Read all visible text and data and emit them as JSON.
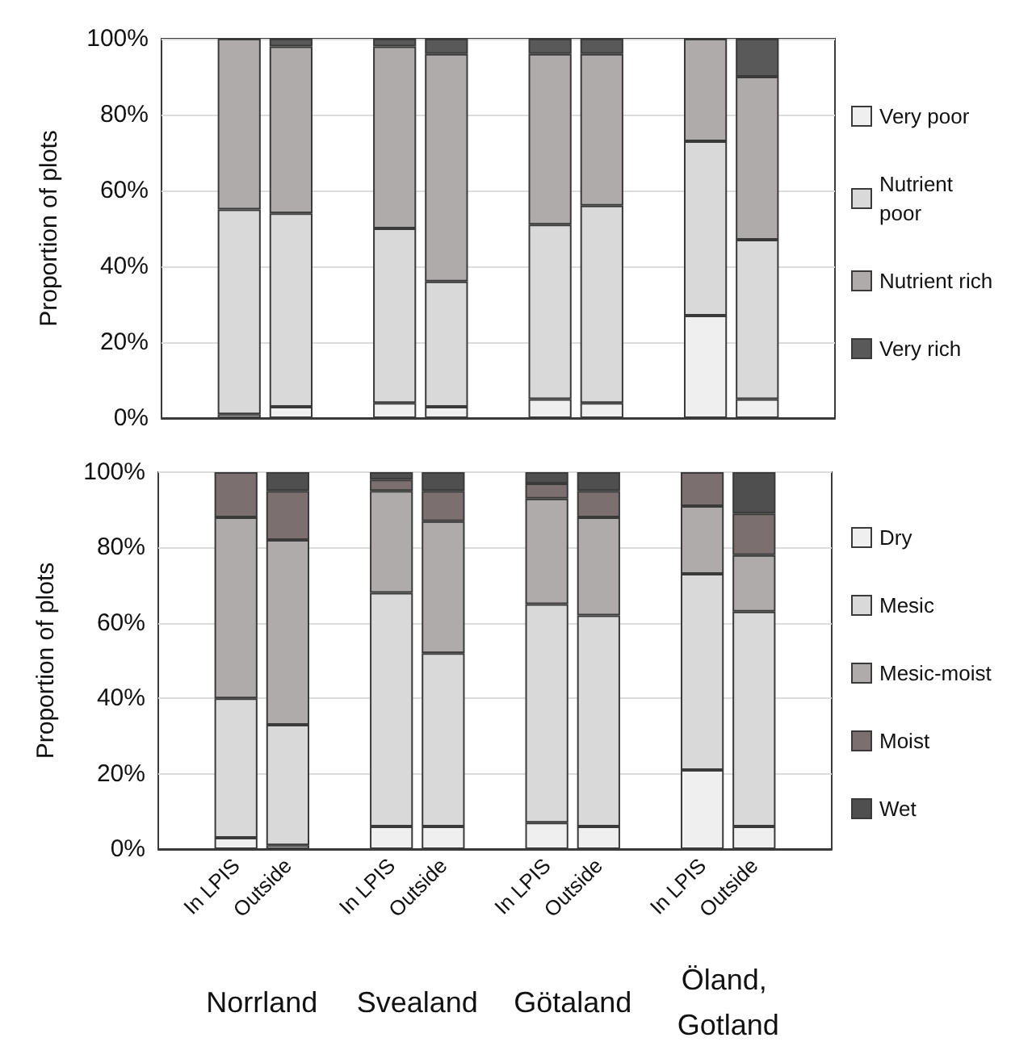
{
  "chart_data": [
    {
      "type": "bar",
      "stacked": true,
      "ylabel": "Proportion of plots",
      "categories": [
        null,
        "In LPIS",
        "Outside",
        null,
        "In LPIS",
        "Outside",
        null,
        "In LPIS",
        "Outside",
        null,
        "In LPIS",
        "Outside",
        null
      ],
      "series": [
        {
          "name": "Very poor",
          "color": "#efefef",
          "values": [
            null,
            1,
            3,
            null,
            4,
            3,
            null,
            5,
            4,
            null,
            27,
            5,
            null
          ]
        },
        {
          "name": "Nutrient poor",
          "color": "#d9d9d9",
          "values": [
            null,
            54,
            51,
            null,
            46,
            33,
            null,
            46,
            52,
            null,
            46,
            42,
            null
          ]
        },
        {
          "name": "Nutrient rich",
          "color": "#afabab",
          "values": [
            null,
            45,
            44,
            null,
            48,
            60,
            null,
            45,
            40,
            null,
            27,
            43,
            null
          ]
        },
        {
          "name": "Very rich",
          "color": "#595959",
          "values": [
            null,
            0,
            2,
            null,
            2,
            4,
            null,
            4,
            4,
            null,
            0,
            10,
            null
          ]
        }
      ],
      "ylim": [
        0,
        100
      ],
      "yticks": [
        {
          "value": 0,
          "label": "0%"
        },
        {
          "value": 20,
          "label": "20%"
        },
        {
          "value": 40,
          "label": "40%"
        },
        {
          "value": 60,
          "label": "60%"
        },
        {
          "value": 80,
          "label": "80%"
        },
        {
          "value": 100,
          "label": "100%"
        }
      ],
      "grid": "y",
      "legend": "right",
      "tick_labels": "y"
    },
    {
      "type": "bar",
      "stacked": true,
      "ylabel": "Proportion of plots",
      "categories": [
        null,
        "In LPIS",
        "Outside",
        null,
        "In LPIS",
        "Outside",
        null,
        "In LPIS",
        "Outside",
        null,
        "In LPIS",
        "Outside",
        null
      ],
      "series": [
        {
          "name": "Dry",
          "color": "#efefef",
          "values": [
            null,
            3,
            1,
            null,
            6,
            6,
            null,
            7,
            6,
            null,
            21,
            6,
            null
          ]
        },
        {
          "name": "Mesic",
          "color": "#d9d9d9",
          "values": [
            null,
            37,
            32,
            null,
            62,
            46,
            null,
            58,
            56,
            null,
            52,
            57,
            null
          ]
        },
        {
          "name": "Mesic-moist",
          "color": "#afabab",
          "values": [
            null,
            48,
            49,
            null,
            27,
            35,
            null,
            28,
            26,
            null,
            18,
            15,
            null
          ]
        },
        {
          "name": "Moist",
          "color": "#7b6f6f",
          "values": [
            null,
            12,
            13,
            null,
            3,
            8,
            null,
            4,
            7,
            null,
            9,
            11,
            null
          ]
        },
        {
          "name": "Wet",
          "color": "#4f4f4f",
          "values": [
            null,
            0,
            5,
            null,
            2,
            5,
            null,
            3,
            5,
            null,
            0,
            11,
            null
          ]
        }
      ],
      "ylim": [
        0,
        100
      ],
      "yticks": [
        {
          "value": 0,
          "label": "0%"
        },
        {
          "value": 20,
          "label": "20%"
        },
        {
          "value": 40,
          "label": "40%"
        },
        {
          "value": 60,
          "label": "60%"
        },
        {
          "value": 80,
          "label": "80%"
        },
        {
          "value": 100,
          "label": "100%"
        }
      ],
      "grid": "y",
      "legend": "right",
      "annotations": [
        "Norrland",
        "Svealand",
        "Götaland",
        "Öland, Gotland"
      ]
    }
  ]
}
